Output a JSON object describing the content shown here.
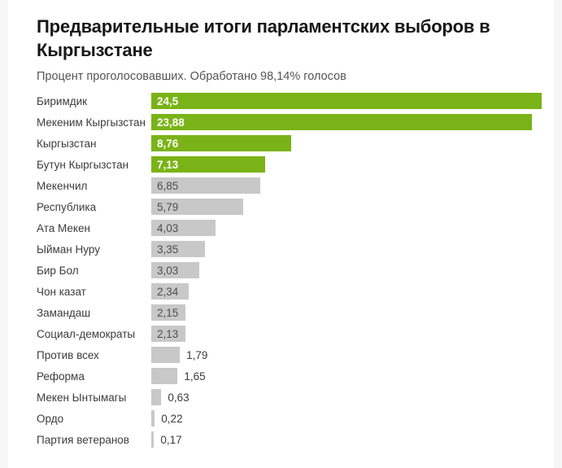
{
  "page": {
    "background_color": "#f6f6f7",
    "card_color": "#ffffff"
  },
  "header": {
    "title": "Предварительные итоги парламентских выборов в Кыргызстане",
    "subtitle": "Процент проголосовавших. Обработано 98,14% голосов"
  },
  "chart_data": {
    "type": "bar",
    "orientation": "horizontal",
    "title": "Предварительные итоги парламентских выборов в Кыргызстане",
    "subtitle": "Процент проголосовавших. Обработано 98,14% голосов",
    "processed_votes_percent": "98,14",
    "categories": [
      "Биримдик",
      "Мекеним Кыргызстан",
      "Кыргызстан",
      "Бутун Кыргызстан",
      "Мекенчил",
      "Республика",
      "Ата Мекен",
      "Ыйман Нуру",
      "Бир Бол",
      "Чон казат",
      "Замандаш",
      "Социал-демократы",
      "Против всех",
      "Реформа",
      "Мекен Ынтымагы",
      "Ордо",
      "Партия ветеранов"
    ],
    "values": [
      24.5,
      23.88,
      8.76,
      7.13,
      6.85,
      5.79,
      4.03,
      3.35,
      3.03,
      2.34,
      2.15,
      2.13,
      1.79,
      1.65,
      0.63,
      0.22,
      0.17
    ],
    "value_labels": [
      "24,5",
      "23,88",
      "8,76",
      "7,13",
      "6,85",
      "5,79",
      "4,03",
      "3,35",
      "3,03",
      "2,34",
      "2,15",
      "2,13",
      "1,79",
      "1,65",
      "0,63",
      "0,22",
      "0,17"
    ],
    "xmax": 24.5,
    "highlight_count": 4,
    "highlight_color": "#7ab317",
    "bar_color": "#c8c8c8",
    "inside_label_threshold": 2.0,
    "grid": false,
    "legend": false
  }
}
